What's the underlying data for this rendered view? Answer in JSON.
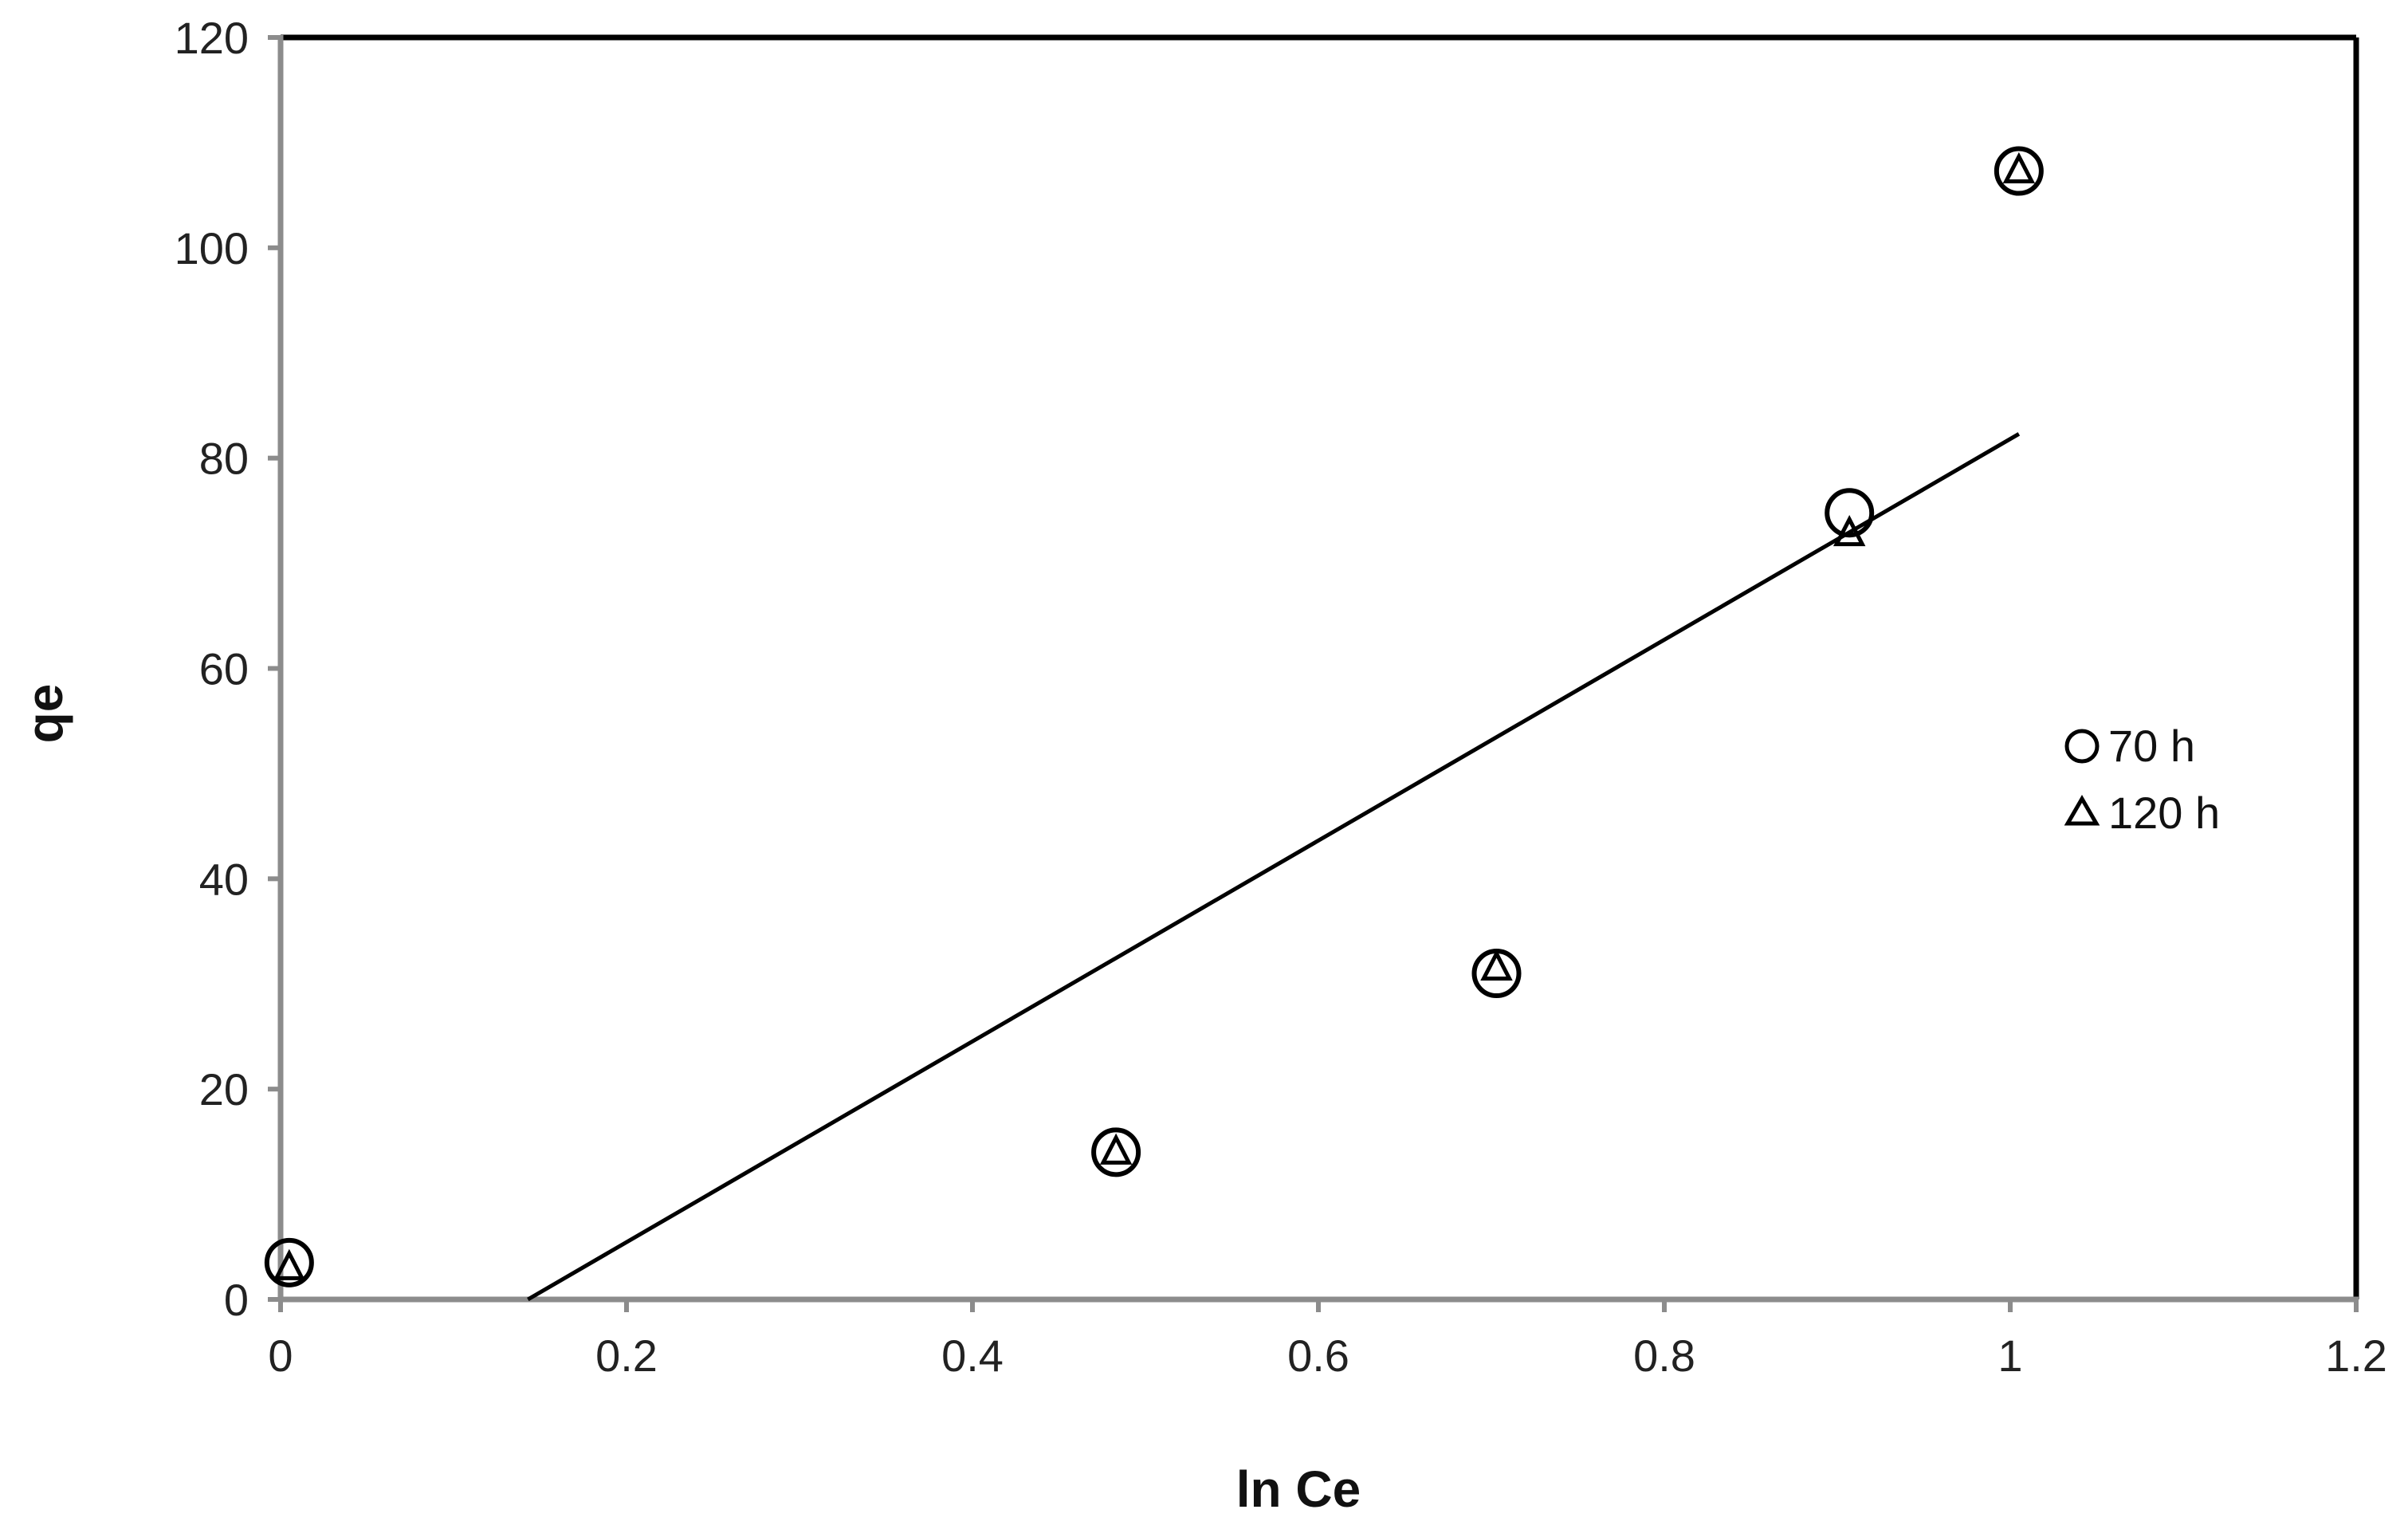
{
  "chart_data": {
    "type": "scatter",
    "xlabel": "ln Ce",
    "ylabel": "qe",
    "xlim": [
      0,
      1.2
    ],
    "ylim": [
      0,
      120
    ],
    "xticks": [
      "0",
      "0.2",
      "0.4",
      "0.6",
      "0.8",
      "1",
      "1.2"
    ],
    "yticks": [
      "0",
      "20",
      "40",
      "60",
      "80",
      "100",
      "120"
    ],
    "grid": false,
    "legend_position": "right",
    "series": [
      {
        "name": "70 h",
        "marker": "circle",
        "color": "#000000",
        "points": [
          {
            "x": 0.005,
            "y": 3.5
          },
          {
            "x": 0.483,
            "y": 14.0
          },
          {
            "x": 0.703,
            "y": 31.0
          },
          {
            "x": 0.907,
            "y": 74.8
          },
          {
            "x": 1.005,
            "y": 107.3
          }
        ]
      },
      {
        "name": "120 h",
        "marker": "triangle",
        "color": "#000000",
        "points": [
          {
            "x": 0.005,
            "y": 3.0
          },
          {
            "x": 0.483,
            "y": 14.0
          },
          {
            "x": 0.703,
            "y": 31.5
          },
          {
            "x": 0.907,
            "y": 72.8
          },
          {
            "x": 1.005,
            "y": 107.3
          }
        ]
      }
    ],
    "trendline": {
      "type": "linear",
      "color": "#000000",
      "points": [
        {
          "x": 0.143,
          "y": 0
        },
        {
          "x": 1.005,
          "y": 82.3
        }
      ]
    }
  }
}
